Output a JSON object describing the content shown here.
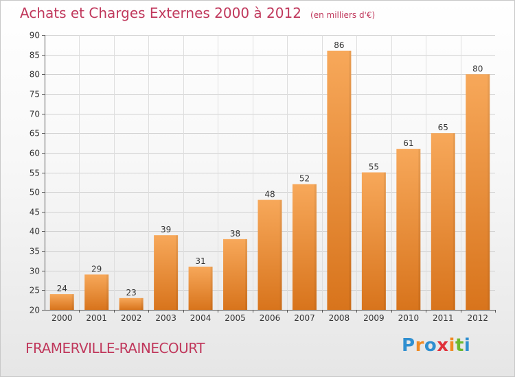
{
  "header": {
    "title": "Achats et Charges Externes 2000 à 2012",
    "subtitle": "(en milliers d'€)"
  },
  "footer": {
    "commune": "FRAMERVILLE-RAINECOURT",
    "brand_letters": [
      {
        "ch": "P",
        "color": "#2f8fd0"
      },
      {
        "ch": "r",
        "color": "#f08a24"
      },
      {
        "ch": "o",
        "color": "#2f8fd0"
      },
      {
        "ch": "x",
        "color": "#e0303a"
      },
      {
        "ch": "i",
        "color": "#f08a24"
      },
      {
        "ch": "t",
        "color": "#6bb82e"
      },
      {
        "ch": "i",
        "color": "#2f8fd0"
      }
    ]
  },
  "colors": {
    "title": "#c0385c",
    "bar_top": "#f7a85a",
    "bar_bottom": "#d8741c",
    "grid": "#cfcfcf"
  },
  "chart_data": {
    "type": "bar",
    "title": "Achats et Charges Externes 2000 à 2012",
    "subtitle": "(en milliers d'€)",
    "categories": [
      "2000",
      "2001",
      "2002",
      "2003",
      "2004",
      "2005",
      "2006",
      "2007",
      "2008",
      "2009",
      "2010",
      "2011",
      "2012"
    ],
    "values": [
      24,
      29,
      23,
      39,
      31,
      38,
      48,
      52,
      86,
      55,
      61,
      65,
      80
    ],
    "ylim": [
      20,
      90
    ],
    "yticks": [
      20,
      25,
      30,
      35,
      40,
      45,
      50,
      55,
      60,
      65,
      70,
      75,
      80,
      85,
      90
    ],
    "grid": true,
    "data_labels": true,
    "xlabel": "",
    "ylabel": ""
  }
}
